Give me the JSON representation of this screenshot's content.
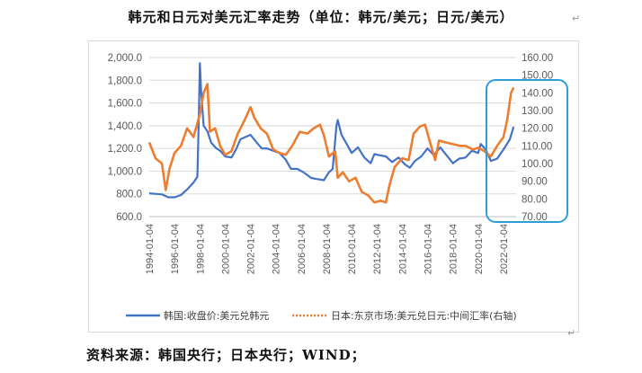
{
  "page": {
    "title": "韩元和日元对美元汇率走势（单位：韩元/美元；日元/美元）",
    "source": "资料来源：韩国央行；日本央行；WIND；",
    "para_mark": "↵"
  },
  "colors": {
    "krw": "#4472C4",
    "jpy": "#ED7D31",
    "highlight": "#2E9FD6",
    "grid": "#d9d9d9",
    "tick": "#595959"
  },
  "chart_data": {
    "type": "line",
    "title": "",
    "xlim": [
      1994.0,
      2023.0
    ],
    "x_tick_labels": [
      "1994-01-04",
      "1996-01-04",
      "1998-01-04",
      "2000-01-04",
      "2002-01-04",
      "2004-01-04",
      "2006-01-04",
      "2008-01-04",
      "2010-01-04",
      "2012-01-04",
      "2014-01-04",
      "2016-01-04",
      "2018-01-04",
      "2020-01-04",
      "2022-01-04"
    ],
    "x_tick_values": [
      1994,
      1996,
      1998,
      2000,
      2002,
      2004,
      2006,
      2008,
      2010,
      2012,
      2014,
      2016,
      2018,
      2020,
      2022
    ],
    "y_left": {
      "range": [
        600,
        2000
      ],
      "ticks": [
        600,
        800,
        1000,
        1200,
        1400,
        1600,
        1800,
        2000
      ],
      "tick_labels": [
        "600.0",
        "800.0",
        "1,000.0",
        "1,200.0",
        "1,400.0",
        "1,600.0",
        "1,800.0",
        "2,000.0"
      ]
    },
    "y_right": {
      "range": [
        70,
        160
      ],
      "ticks": [
        70,
        80,
        90,
        100,
        110,
        120,
        130,
        140,
        150,
        160
      ],
      "tick_labels": [
        "70.00",
        "80.00",
        "90.00",
        "100.00",
        "110.00",
        "120.00",
        "130.00",
        "140.00",
        "150.00",
        "160.00"
      ]
    },
    "legend_position": "bottom",
    "series": [
      {
        "name": "韩国:收盘价:美元兑韩元",
        "axis": "left",
        "style": "solid",
        "x": [
          1994.0,
          1994.5,
          1995.0,
          1995.5,
          1996.0,
          1996.5,
          1997.0,
          1997.5,
          1997.8,
          1997.9,
          1998.0,
          1998.1,
          1998.3,
          1998.6,
          1998.9,
          1999.3,
          1999.6,
          2000.0,
          2000.5,
          2000.9,
          2001.2,
          2001.6,
          2002.0,
          2002.5,
          2002.9,
          2003.3,
          2003.8,
          2004.3,
          2004.8,
          2005.2,
          2005.7,
          2006.2,
          2006.8,
          2007.3,
          2007.8,
          2008.2,
          2008.5,
          2008.8,
          2008.9,
          2009.2,
          2009.5,
          2010.0,
          2010.5,
          2011.0,
          2011.5,
          2011.8,
          2012.2,
          2012.7,
          2013.2,
          2013.7,
          2014.2,
          2014.6,
          2015.0,
          2015.5,
          2016.0,
          2016.5,
          2017.0,
          2017.5,
          2018.0,
          2018.5,
          2019.0,
          2019.5,
          2020.0,
          2020.2,
          2020.6,
          2021.0,
          2021.5,
          2022.0,
          2022.5,
          2022.8
        ],
        "values": [
          805,
          800,
          795,
          770,
          770,
          790,
          840,
          900,
          950,
          1400,
          1950,
          1700,
          1400,
          1350,
          1250,
          1200,
          1180,
          1130,
          1120,
          1200,
          1280,
          1300,
          1320,
          1250,
          1200,
          1200,
          1180,
          1160,
          1100,
          1020,
          1020,
          990,
          940,
          930,
          920,
          990,
          1020,
          1400,
          1450,
          1320,
          1260,
          1160,
          1210,
          1120,
          1070,
          1150,
          1140,
          1130,
          1080,
          1120,
          1060,
          1030,
          1090,
          1130,
          1200,
          1140,
          1210,
          1140,
          1070,
          1110,
          1120,
          1180,
          1160,
          1240,
          1190,
          1090,
          1110,
          1190,
          1280,
          1390
        ]
      },
      {
        "name": "日本:东京市场:美元兑日元:中间汇率(右轴)",
        "axis": "right",
        "style": "dotted",
        "x": [
          1994.0,
          1994.5,
          1995.0,
          1995.3,
          1995.6,
          1996.0,
          1996.5,
          1997.0,
          1997.5,
          1998.0,
          1998.3,
          1998.6,
          1998.8,
          1999.2,
          1999.6,
          2000.0,
          2000.5,
          2001.0,
          2001.5,
          2002.0,
          2002.3,
          2002.8,
          2003.3,
          2003.8,
          2004.3,
          2004.8,
          2005.3,
          2005.9,
          2006.5,
          2007.0,
          2007.5,
          2007.8,
          2008.2,
          2008.7,
          2008.9,
          2009.3,
          2009.8,
          2010.3,
          2010.8,
          2011.3,
          2011.8,
          2012.3,
          2012.7,
          2013.0,
          2013.4,
          2014.0,
          2014.5,
          2014.9,
          2015.4,
          2015.8,
          2016.2,
          2016.6,
          2016.9,
          2017.4,
          2018.0,
          2018.6,
          2019.0,
          2019.6,
          2020.0,
          2020.5,
          2021.0,
          2021.5,
          2022.0,
          2022.3,
          2022.6,
          2022.8
        ],
        "values": [
          112,
          103,
          100,
          85,
          97,
          106,
          110,
          120,
          115,
          128,
          140,
          145,
          118,
          120,
          110,
          105,
          107,
          117,
          124,
          132,
          126,
          120,
          117,
          108,
          106,
          105,
          110,
          118,
          117,
          120,
          122,
          116,
          104,
          107,
          92,
          95,
          90,
          92,
          84,
          82,
          78,
          79,
          78,
          88,
          98,
          103,
          102,
          117,
          121,
          122,
          112,
          102,
          113,
          112,
          111,
          110,
          110,
          108,
          109,
          107,
          104,
          110,
          115,
          125,
          140,
          143
        ]
      }
    ]
  }
}
